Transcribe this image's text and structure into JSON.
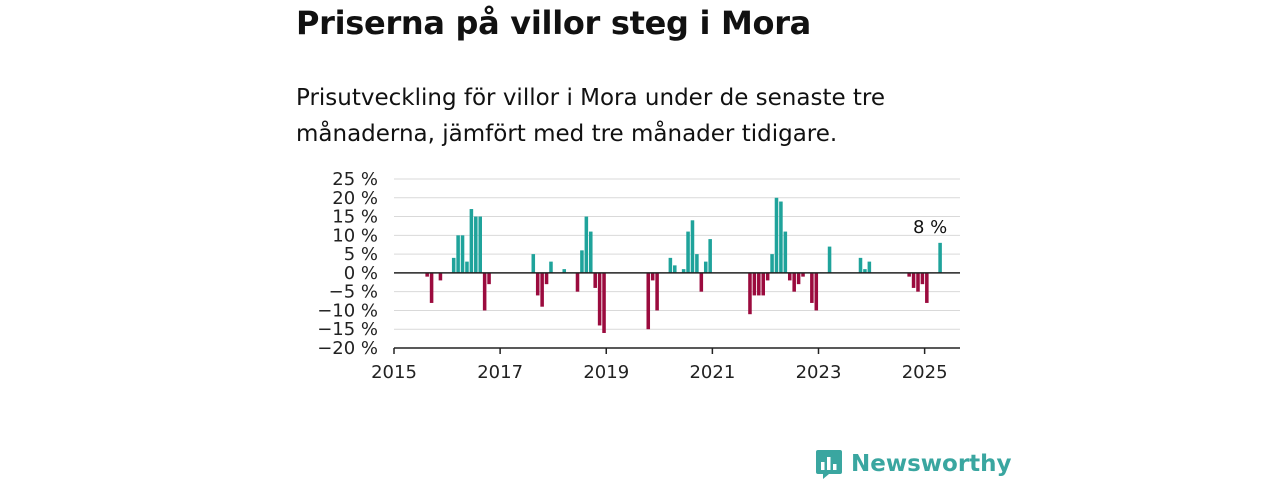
{
  "header": {
    "title": "Priserna på villor steg i Mora",
    "subtitle": "Prisutveckling för villor i Mora under de senaste tre månaderna, jämfört med tre månader tidigare."
  },
  "brand": {
    "name": "Newsworthy",
    "icon": "newsworthy-logo-icon",
    "color": "#3aa6a0"
  },
  "colors": {
    "positive": "#1fa39b",
    "negative": "#9b0b3e",
    "grid": "#d9d9d9",
    "axis": "#222222"
  },
  "chart_data": {
    "type": "bar",
    "x_unit": "date",
    "xlim": [
      "2015-01-01",
      "2025-09-01"
    ],
    "x_ticks": [
      "2015",
      "2017",
      "2019",
      "2021",
      "2023",
      "2025"
    ],
    "ylim": [
      -20,
      25
    ],
    "y_ticks": [
      "−20 %",
      "−15 %",
      "−10 %",
      "−5 %",
      "0 %",
      "5 %",
      "10 %",
      "15 %",
      "20 %",
      "25 %"
    ],
    "grid": true,
    "last_label": "8 %",
    "points": [
      {
        "x": "2015-08",
        "y": -1
      },
      {
        "x": "2015-09",
        "y": -8
      },
      {
        "x": "2015-11",
        "y": -2
      },
      {
        "x": "2016-02",
        "y": 4
      },
      {
        "x": "2016-03",
        "y": 10
      },
      {
        "x": "2016-04",
        "y": 10
      },
      {
        "x": "2016-05",
        "y": 3
      },
      {
        "x": "2016-06",
        "y": 17
      },
      {
        "x": "2016-07",
        "y": 15
      },
      {
        "x": "2016-08",
        "y": 15
      },
      {
        "x": "2016-09",
        "y": -10
      },
      {
        "x": "2016-10",
        "y": -3
      },
      {
        "x": "2017-08",
        "y": 5
      },
      {
        "x": "2017-09",
        "y": -6
      },
      {
        "x": "2017-10",
        "y": -9
      },
      {
        "x": "2017-11",
        "y": -3
      },
      {
        "x": "2017-12",
        "y": 3
      },
      {
        "x": "2018-03",
        "y": 1
      },
      {
        "x": "2018-06",
        "y": -5
      },
      {
        "x": "2018-07",
        "y": 6
      },
      {
        "x": "2018-08",
        "y": 15
      },
      {
        "x": "2018-09",
        "y": 11
      },
      {
        "x": "2018-10",
        "y": -4
      },
      {
        "x": "2018-11",
        "y": -14
      },
      {
        "x": "2018-12",
        "y": -16
      },
      {
        "x": "2019-10",
        "y": -15
      },
      {
        "x": "2019-11",
        "y": -2
      },
      {
        "x": "2019-12",
        "y": -10
      },
      {
        "x": "2020-03",
        "y": 4
      },
      {
        "x": "2020-04",
        "y": 2
      },
      {
        "x": "2020-06",
        "y": 1
      },
      {
        "x": "2020-07",
        "y": 11
      },
      {
        "x": "2020-08",
        "y": 14
      },
      {
        "x": "2020-09",
        "y": 5
      },
      {
        "x": "2020-10",
        "y": -5
      },
      {
        "x": "2020-11",
        "y": 3
      },
      {
        "x": "2020-12",
        "y": 9
      },
      {
        "x": "2021-09",
        "y": -11
      },
      {
        "x": "2021-10",
        "y": -6
      },
      {
        "x": "2021-11",
        "y": -6
      },
      {
        "x": "2021-12",
        "y": -6
      },
      {
        "x": "2022-01",
        "y": -2
      },
      {
        "x": "2022-02",
        "y": 5
      },
      {
        "x": "2022-03",
        "y": 20
      },
      {
        "x": "2022-04",
        "y": 19
      },
      {
        "x": "2022-05",
        "y": 11
      },
      {
        "x": "2022-06",
        "y": -2
      },
      {
        "x": "2022-07",
        "y": -5
      },
      {
        "x": "2022-08",
        "y": -3
      },
      {
        "x": "2022-09",
        "y": -1
      },
      {
        "x": "2022-11",
        "y": -8
      },
      {
        "x": "2022-12",
        "y": -10
      },
      {
        "x": "2023-03",
        "y": 7
      },
      {
        "x": "2023-10",
        "y": 4
      },
      {
        "x": "2023-11",
        "y": 1
      },
      {
        "x": "2023-12",
        "y": 3
      },
      {
        "x": "2024-09",
        "y": -1
      },
      {
        "x": "2024-10",
        "y": -4
      },
      {
        "x": "2024-11",
        "y": -5
      },
      {
        "x": "2024-12",
        "y": -3
      },
      {
        "x": "2025-01",
        "y": -8
      },
      {
        "x": "2025-04",
        "y": 8
      }
    ]
  }
}
